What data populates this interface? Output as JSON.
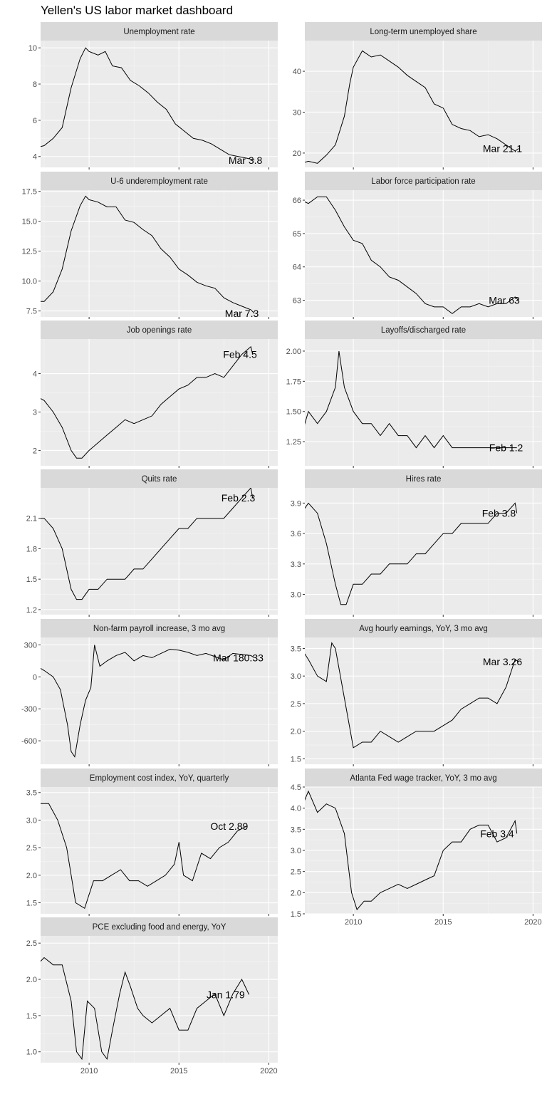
{
  "dashboard": {
    "title": "Yellen's US labor market dashboard"
  },
  "chart_data": [
    {
      "type": "line",
      "title": "Unemployment rate",
      "xlim": [
        2007.3,
        2020.5
      ],
      "ylim": [
        3.4,
        10.4
      ],
      "yticks": [
        4,
        6,
        8,
        10
      ],
      "xticks": [
        2010,
        2015,
        2020
      ],
      "x": [
        2007.1,
        2007.5,
        2008.0,
        2008.5,
        2009.0,
        2009.5,
        2009.8,
        2010.0,
        2010.5,
        2010.9,
        2011.3,
        2011.8,
        2012.3,
        2012.8,
        2013.3,
        2013.8,
        2014.3,
        2014.8,
        2015.3,
        2015.8,
        2016.3,
        2016.8,
        2017.3,
        2017.8,
        2018.3,
        2018.8,
        2019.2
      ],
      "y": [
        4.5,
        4.6,
        5.0,
        5.6,
        7.8,
        9.4,
        10.0,
        9.8,
        9.6,
        9.8,
        9.0,
        8.9,
        8.2,
        7.9,
        7.5,
        7.0,
        6.6,
        5.8,
        5.4,
        5.0,
        4.9,
        4.7,
        4.4,
        4.1,
        4.0,
        3.9,
        3.8
      ],
      "annotation": {
        "text": "Mar 3.8",
        "x": 2018.7,
        "y": 3.8
      }
    },
    {
      "type": "line",
      "title": "Long-term unemployed share",
      "xlim": [
        2007.3,
        2020.5
      ],
      "ylim": [
        16.5,
        47.5
      ],
      "yticks": [
        20,
        30,
        40
      ],
      "xticks": [
        2010,
        2015,
        2020
      ],
      "x": [
        2007.1,
        2007.5,
        2008.0,
        2008.5,
        2009.0,
        2009.5,
        2009.8,
        2010.0,
        2010.5,
        2011.0,
        2011.5,
        2012.0,
        2012.5,
        2013.0,
        2013.5,
        2014.0,
        2014.5,
        2015.0,
        2015.5,
        2016.0,
        2016.5,
        2017.0,
        2017.5,
        2018.0,
        2018.5,
        2019.0,
        2019.2
      ],
      "y": [
        17.5,
        18.0,
        17.5,
        19.5,
        22.0,
        29.0,
        37.0,
        41.0,
        45.0,
        43.5,
        44.0,
        42.5,
        41.0,
        39.0,
        37.5,
        36.0,
        32.0,
        31.0,
        27.0,
        26.0,
        25.5,
        24.0,
        24.5,
        23.5,
        22.0,
        20.5,
        21.1
      ],
      "annotation": {
        "text": "Mar 21.1",
        "x": 2018.3,
        "y": 21.1
      }
    },
    {
      "type": "line",
      "title": "U-6 underemployment rate",
      "xlim": [
        2007.3,
        2020.5
      ],
      "ylim": [
        7.0,
        17.6
      ],
      "yticks": [
        7.5,
        10.0,
        12.5,
        15.0,
        17.5
      ],
      "xticks": [
        2010,
        2015,
        2020
      ],
      "x": [
        2007.1,
        2007.5,
        2008.0,
        2008.5,
        2009.0,
        2009.5,
        2009.8,
        2010.0,
        2010.5,
        2011.0,
        2011.5,
        2012.0,
        2012.5,
        2013.0,
        2013.5,
        2014.0,
        2014.5,
        2015.0,
        2015.5,
        2016.0,
        2016.5,
        2017.0,
        2017.5,
        2018.0,
        2018.5,
        2019.0,
        2019.2
      ],
      "y": [
        8.3,
        8.3,
        9.1,
        11.0,
        14.2,
        16.3,
        17.1,
        16.8,
        16.6,
        16.2,
        16.2,
        15.1,
        14.9,
        14.3,
        13.8,
        12.7,
        12.0,
        11.0,
        10.5,
        9.9,
        9.6,
        9.4,
        8.6,
        8.2,
        7.9,
        7.6,
        7.3
      ],
      "annotation": {
        "text": "Mar 7.3",
        "x": 2018.5,
        "y": 7.3
      }
    },
    {
      "type": "line",
      "title": "Labor force participation rate",
      "xlim": [
        2007.3,
        2020.5
      ],
      "ylim": [
        62.5,
        66.3
      ],
      "yticks": [
        63,
        64,
        65,
        66
      ],
      "xticks": [
        2010,
        2015,
        2020
      ],
      "x": [
        2007.1,
        2007.5,
        2008.0,
        2008.5,
        2009.0,
        2009.5,
        2010.0,
        2010.5,
        2011.0,
        2011.5,
        2012.0,
        2012.5,
        2013.0,
        2013.5,
        2014.0,
        2014.5,
        2015.0,
        2015.5,
        2016.0,
        2016.5,
        2017.0,
        2017.5,
        2018.0,
        2018.5,
        2019.0,
        2019.2
      ],
      "y": [
        66.0,
        65.9,
        66.1,
        66.1,
        65.7,
        65.2,
        64.8,
        64.7,
        64.2,
        64.0,
        63.7,
        63.6,
        63.4,
        63.2,
        62.9,
        62.8,
        62.8,
        62.6,
        62.8,
        62.8,
        62.9,
        62.8,
        62.9,
        62.9,
        63.1,
        63.0
      ],
      "annotation": {
        "text": "Mar 63",
        "x": 2018.4,
        "y": 63.0
      }
    },
    {
      "type": "line",
      "title": "Job openings rate",
      "xlim": [
        2007.3,
        2020.5
      ],
      "ylim": [
        1.6,
        4.9
      ],
      "yticks": [
        2,
        3,
        4
      ],
      "xticks": [
        2010,
        2015,
        2020
      ],
      "x": [
        2007.1,
        2007.5,
        2008.0,
        2008.5,
        2009.0,
        2009.3,
        2009.6,
        2010.0,
        2010.5,
        2011.0,
        2011.5,
        2012.0,
        2012.5,
        2013.0,
        2013.5,
        2014.0,
        2014.5,
        2015.0,
        2015.5,
        2016.0,
        2016.5,
        2017.0,
        2017.5,
        2018.0,
        2018.5,
        2019.0,
        2019.1
      ],
      "y": [
        3.4,
        3.3,
        3.0,
        2.6,
        2.0,
        1.8,
        1.8,
        2.0,
        2.2,
        2.4,
        2.6,
        2.8,
        2.7,
        2.8,
        2.9,
        3.2,
        3.4,
        3.6,
        3.7,
        3.9,
        3.9,
        4.0,
        3.9,
        4.2,
        4.5,
        4.7,
        4.5
      ],
      "annotation": {
        "text": "Feb 4.5",
        "x": 2018.4,
        "y": 4.5
      }
    },
    {
      "type": "line",
      "title": "Layoffs/discharged rate",
      "xlim": [
        2007.3,
        2020.5
      ],
      "ylim": [
        1.05,
        2.1
      ],
      "yticks": [
        1.25,
        1.5,
        1.75,
        2.0
      ],
      "xticks": [
        2010,
        2015,
        2020
      ],
      "x": [
        2007.1,
        2007.5,
        2008.0,
        2008.5,
        2009.0,
        2009.2,
        2009.5,
        2010.0,
        2010.5,
        2011.0,
        2011.5,
        2012.0,
        2012.5,
        2013.0,
        2013.5,
        2014.0,
        2014.5,
        2015.0,
        2015.5,
        2016.0,
        2016.5,
        2017.0,
        2017.5,
        2018.0,
        2018.5,
        2019.0,
        2019.1
      ],
      "y": [
        1.3,
        1.5,
        1.4,
        1.5,
        1.7,
        2.0,
        1.7,
        1.5,
        1.4,
        1.4,
        1.3,
        1.4,
        1.3,
        1.3,
        1.2,
        1.3,
        1.2,
        1.3,
        1.2,
        1.2,
        1.2,
        1.2,
        1.2,
        1.2,
        1.2,
        1.2,
        1.2
      ],
      "annotation": {
        "text": "Feb 1.2",
        "x": 2018.5,
        "y": 1.2
      }
    },
    {
      "type": "line",
      "title": "Quits rate",
      "xlim": [
        2007.3,
        2020.5
      ],
      "ylim": [
        1.15,
        2.4
      ],
      "yticks": [
        1.2,
        1.5,
        1.8,
        2.1
      ],
      "xticks": [
        2010,
        2015,
        2020
      ],
      "x": [
        2007.1,
        2007.5,
        2008.0,
        2008.5,
        2009.0,
        2009.3,
        2009.6,
        2010.0,
        2010.5,
        2011.0,
        2011.5,
        2012.0,
        2012.5,
        2013.0,
        2013.5,
        2014.0,
        2014.5,
        2015.0,
        2015.5,
        2016.0,
        2016.5,
        2017.0,
        2017.5,
        2018.0,
        2018.5,
        2019.0,
        2019.1
      ],
      "y": [
        2.1,
        2.1,
        2.0,
        1.8,
        1.4,
        1.3,
        1.3,
        1.4,
        1.4,
        1.5,
        1.5,
        1.5,
        1.6,
        1.6,
        1.7,
        1.8,
        1.9,
        2.0,
        2.0,
        2.1,
        2.1,
        2.1,
        2.1,
        2.2,
        2.3,
        2.4,
        2.3
      ],
      "annotation": {
        "text": "Feb 2.3",
        "x": 2018.3,
        "y": 2.3
      }
    },
    {
      "type": "line",
      "title": "Hires rate",
      "xlim": [
        2007.3,
        2020.5
      ],
      "ylim": [
        2.8,
        4.05
      ],
      "yticks": [
        3.0,
        3.3,
        3.6,
        3.9
      ],
      "xticks": [
        2010,
        2015,
        2020
      ],
      "x": [
        2007.1,
        2007.5,
        2008.0,
        2008.5,
        2009.0,
        2009.3,
        2009.6,
        2010.0,
        2010.5,
        2011.0,
        2011.5,
        2012.0,
        2012.5,
        2013.0,
        2013.5,
        2014.0,
        2014.5,
        2015.0,
        2015.5,
        2016.0,
        2016.5,
        2017.0,
        2017.5,
        2018.0,
        2018.5,
        2019.0,
        2019.1
      ],
      "y": [
        3.8,
        3.9,
        3.8,
        3.5,
        3.1,
        2.9,
        2.9,
        3.1,
        3.1,
        3.2,
        3.2,
        3.3,
        3.3,
        3.3,
        3.4,
        3.4,
        3.5,
        3.6,
        3.6,
        3.7,
        3.7,
        3.7,
        3.7,
        3.8,
        3.8,
        3.9,
        3.8
      ],
      "annotation": {
        "text": "Feb 3.8",
        "x": 2018.1,
        "y": 3.8
      }
    },
    {
      "type": "line",
      "title": "Non-farm payroll increase, 3 mo avg",
      "xlim": [
        2007.3,
        2020.5
      ],
      "ylim": [
        -820,
        370
      ],
      "yticks": [
        -600,
        -300,
        0,
        300
      ],
      "xticks": [
        2010,
        2015,
        2020
      ],
      "x": [
        2007.1,
        2007.5,
        2008.0,
        2008.4,
        2008.8,
        2009.0,
        2009.2,
        2009.5,
        2009.8,
        2010.1,
        2010.3,
        2010.6,
        2011.0,
        2011.5,
        2012.0,
        2012.5,
        2013.0,
        2013.5,
        2014.0,
        2014.5,
        2015.0,
        2015.5,
        2016.0,
        2016.5,
        2017.0,
        2017.5,
        2018.0,
        2018.5,
        2019.0,
        2019.2
      ],
      "y": [
        100,
        60,
        0,
        -120,
        -450,
        -700,
        -750,
        -450,
        -220,
        -100,
        300,
        100,
        150,
        200,
        230,
        150,
        200,
        180,
        220,
        260,
        250,
        230,
        200,
        220,
        190,
        160,
        220,
        210,
        200,
        180
      ],
      "annotation": {
        "text": "Mar 180.33",
        "x": 2018.3,
        "y": 180
      }
    },
    {
      "type": "line",
      "title": "Avg hourly earnings, YoY, 3 mo avg",
      "xlim": [
        2007.3,
        2020.5
      ],
      "ylim": [
        1.4,
        3.7
      ],
      "yticks": [
        1.5,
        2.0,
        2.5,
        3.0,
        3.5
      ],
      "xticks": [
        2010,
        2015,
        2020
      ],
      "x": [
        2007.1,
        2007.5,
        2008.0,
        2008.5,
        2008.8,
        2009.0,
        2009.5,
        2010.0,
        2010.5,
        2011.0,
        2011.5,
        2012.0,
        2012.5,
        2013.0,
        2013.5,
        2014.0,
        2014.5,
        2015.0,
        2015.5,
        2016.0,
        2016.5,
        2017.0,
        2017.5,
        2018.0,
        2018.5,
        2019.0,
        2019.2
      ],
      "y": [
        3.5,
        3.3,
        3.0,
        2.9,
        3.6,
        3.5,
        2.6,
        1.7,
        1.8,
        1.8,
        2.0,
        1.9,
        1.8,
        1.9,
        2.0,
        2.0,
        2.0,
        2.1,
        2.2,
        2.4,
        2.5,
        2.6,
        2.6,
        2.5,
        2.8,
        3.3,
        3.26
      ],
      "annotation": {
        "text": "Mar 3.26",
        "x": 2018.3,
        "y": 3.26
      }
    },
    {
      "type": "line",
      "title": "Employment cost index, YoY, quarterly",
      "xlim": [
        2007.3,
        2020.5
      ],
      "ylim": [
        1.3,
        3.6
      ],
      "yticks": [
        1.5,
        2.0,
        2.5,
        3.0,
        3.5
      ],
      "xticks": [
        2010,
        2015,
        2020
      ],
      "x": [
        2007.25,
        2007.75,
        2008.25,
        2008.75,
        2009.25,
        2009.75,
        2010.25,
        2010.75,
        2011.25,
        2011.75,
        2012.25,
        2012.75,
        2013.25,
        2013.75,
        2014.25,
        2014.75,
        2015.0,
        2015.25,
        2015.75,
        2016.25,
        2016.75,
        2017.25,
        2017.75,
        2018.25,
        2018.75
      ],
      "y": [
        3.3,
        3.3,
        3.0,
        2.5,
        1.5,
        1.4,
        1.9,
        1.9,
        2.0,
        2.1,
        1.9,
        1.9,
        1.8,
        1.9,
        2.0,
        2.2,
        2.6,
        2.0,
        1.9,
        2.4,
        2.3,
        2.5,
        2.6,
        2.8,
        2.89
      ],
      "annotation": {
        "text": "Oct 2.89",
        "x": 2017.8,
        "y": 2.89
      }
    },
    {
      "type": "line",
      "title": "Atlanta Fed wage tracker, YoY, 3 mo avg",
      "xlim": [
        2007.3,
        2020.5
      ],
      "ylim": [
        1.5,
        4.5
      ],
      "yticks": [
        1.5,
        2.0,
        2.5,
        3.0,
        3.5,
        4.0,
        4.5
      ],
      "xticks": [
        2010,
        2015,
        2020
      ],
      "x": [
        2007.1,
        2007.5,
        2008.0,
        2008.5,
        2009.0,
        2009.5,
        2009.9,
        2010.2,
        2010.6,
        2011.0,
        2011.5,
        2012.0,
        2012.5,
        2013.0,
        2013.5,
        2014.0,
        2014.5,
        2015.0,
        2015.5,
        2016.0,
        2016.5,
        2017.0,
        2017.5,
        2018.0,
        2018.5,
        2019.0,
        2019.1
      ],
      "y": [
        4.0,
        4.4,
        3.9,
        4.1,
        4.0,
        3.4,
        2.0,
        1.6,
        1.8,
        1.8,
        2.0,
        2.1,
        2.2,
        2.1,
        2.2,
        2.3,
        2.4,
        3.0,
        3.2,
        3.2,
        3.5,
        3.6,
        3.6,
        3.2,
        3.3,
        3.7,
        3.4
      ],
      "annotation": {
        "text": "Feb 3.4",
        "x": 2018.0,
        "y": 3.4
      }
    },
    {
      "type": "line",
      "title": "PCE excluding food and energy, YoY",
      "xlim": [
        2007.3,
        2020.5
      ],
      "ylim": [
        0.85,
        2.6
      ],
      "yticks": [
        1.0,
        1.5,
        2.0,
        2.5
      ],
      "xticks": [
        2010,
        2015,
        2020
      ],
      "x": [
        2007.1,
        2007.5,
        2008.0,
        2008.5,
        2009.0,
        2009.3,
        2009.6,
        2009.9,
        2010.3,
        2010.7,
        2011.0,
        2011.3,
        2011.7,
        2012.0,
        2012.3,
        2012.7,
        2013.0,
        2013.5,
        2014.0,
        2014.5,
        2015.0,
        2015.5,
        2016.0,
        2016.5,
        2017.0,
        2017.5,
        2018.0,
        2018.5,
        2018.9
      ],
      "y": [
        2.2,
        2.3,
        2.2,
        2.2,
        1.7,
        1.0,
        0.9,
        1.7,
        1.6,
        1.0,
        0.9,
        1.3,
        1.8,
        2.1,
        1.9,
        1.6,
        1.5,
        1.4,
        1.5,
        1.6,
        1.3,
        1.3,
        1.6,
        1.7,
        1.8,
        1.5,
        1.8,
        2.0,
        1.79
      ],
      "annotation": {
        "text": "Jan 1.79",
        "x": 2017.6,
        "y": 1.79
      }
    }
  ]
}
